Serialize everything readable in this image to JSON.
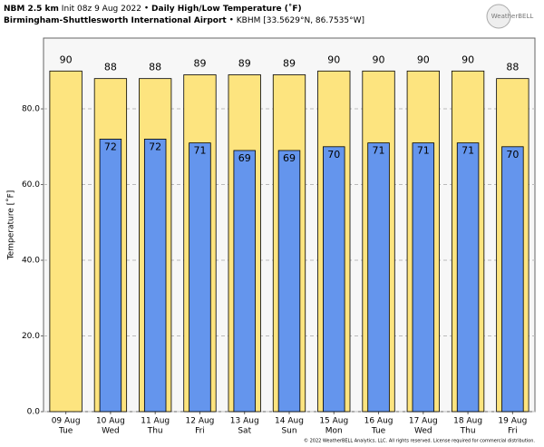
{
  "chart_data": {
    "type": "bar",
    "title_model": "NBM 2.5 km",
    "title_init": "Init 08z 9 Aug 2022",
    "title_main": "Daily High/Low Temperature (˚F)",
    "station_name": "Birmingham-Shuttlesworth International Airport",
    "station_id": "KBHM [33.5629°N, 86.7535°W]",
    "y_label": "Temperature [˚F]",
    "logo": "WeatherBELL",
    "footer": "© 2022 WeatherBELL Analytics, LLC. All rights reserved. License required for commercial distribution.",
    "categories": [
      "09 Aug",
      "10 Aug",
      "11 Aug",
      "12 Aug",
      "13 Aug",
      "14 Aug",
      "15 Aug",
      "16 Aug",
      "17 Aug",
      "18 Aug",
      "19 Aug"
    ],
    "weekdays": [
      "Tue",
      "Wed",
      "Thu",
      "Fri",
      "Sat",
      "Sun",
      "Mon",
      "Tue",
      "Wed",
      "Thu",
      "Fri"
    ],
    "series": [
      {
        "name": "High",
        "color": "#fde47f",
        "values": [
          90,
          88,
          88,
          89,
          89,
          89,
          90,
          90,
          90,
          90,
          88
        ]
      },
      {
        "name": "Low",
        "color": "#6495ed",
        "values": [
          null,
          72,
          72,
          71,
          69,
          69,
          70,
          71,
          71,
          71,
          70
        ]
      }
    ],
    "ylim": [
      0,
      98.7
    ],
    "yticks": [
      {
        "value": 0,
        "label": "0.0"
      },
      {
        "value": 20,
        "label": "20.0"
      },
      {
        "value": 40,
        "label": "40.0"
      },
      {
        "value": 60,
        "label": "60.0"
      },
      {
        "value": 80,
        "label": "80.0"
      }
    ],
    "grid": true
  }
}
